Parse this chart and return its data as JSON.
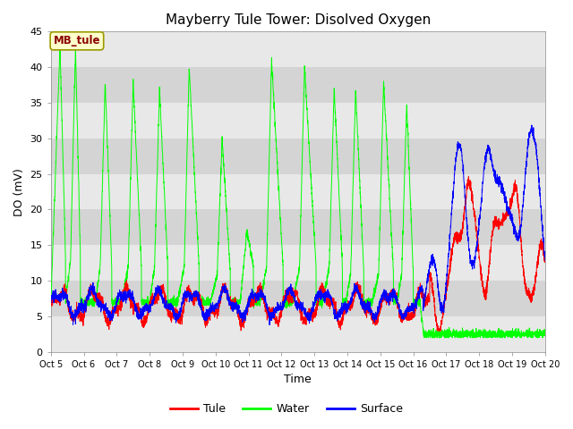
{
  "title": "Mayberry Tule Tower: Disolved Oxygen",
  "ylabel": "DO (mV)",
  "xlabel": "Time",
  "ylim": [
    0,
    45
  ],
  "yticks": [
    0,
    5,
    10,
    15,
    20,
    25,
    30,
    35,
    40,
    45
  ],
  "xtick_labels": [
    "Oct 5",
    "Oct 6",
    "Oct 7",
    "Oct 8",
    "Oct 9",
    "Oct 10",
    "Oct 11",
    "Oct 12",
    "Oct 13",
    "Oct 14",
    "Oct 15",
    "Oct 16",
    "Oct 17",
    "Oct 18",
    "Oct 19",
    "Oct 20"
  ],
  "legend_labels": [
    "Tule",
    "Water",
    "Surface"
  ],
  "tule_color": "#ff0000",
  "water_color": "#00ff00",
  "surface_color": "#0000ff",
  "bg_color": "#d9d9d9",
  "band_light": "#e8e8e8",
  "band_dark": "#d0d0d0",
  "annotation_text": "MB_tule",
  "title_fontsize": 11,
  "axis_fontsize": 9,
  "tick_fontsize": 8
}
